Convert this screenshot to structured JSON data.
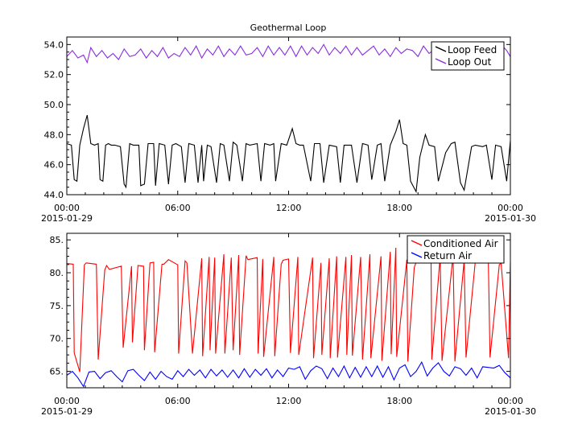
{
  "chart_data": [
    {
      "type": "line",
      "title": "Geothermal Loop",
      "xlabel": "",
      "ylabel": "",
      "xlim": [
        "2015-01-29 00:00",
        "2015-01-30 00:00"
      ],
      "ylim": [
        44.0,
        54.5
      ],
      "xticks": [
        {
          "x_hours": 0,
          "label": "00:00",
          "sublabel": "2015-01-29"
        },
        {
          "x_hours": 6,
          "label": "06:00",
          "sublabel": ""
        },
        {
          "x_hours": 12,
          "label": "12:00",
          "sublabel": ""
        },
        {
          "x_hours": 18,
          "label": "18:00",
          "sublabel": ""
        },
        {
          "x_hours": 24,
          "label": "00:00",
          "sublabel": "2015-01-30"
        }
      ],
      "yticks": [
        {
          "value": 44,
          "label": "44.0"
        },
        {
          "value": 46,
          "label": "46.0"
        },
        {
          "value": 48,
          "label": "48.0"
        },
        {
          "value": 50,
          "label": "50.0"
        },
        {
          "value": 52,
          "label": "52.0"
        },
        {
          "value": 54,
          "label": "54.0"
        }
      ],
      "legend": "top-right",
      "series": [
        {
          "name": "Loop Feed",
          "color": "#000000",
          "x_hours": [
            0.0,
            0.25,
            0.4,
            0.55,
            0.7,
            0.9,
            1.1,
            1.3,
            1.5,
            1.7,
            1.8,
            1.95,
            2.1,
            2.25,
            2.4,
            2.6,
            2.9,
            3.1,
            3.2,
            3.4,
            3.6,
            3.9,
            4.0,
            4.2,
            4.4,
            4.7,
            4.8,
            5.0,
            5.3,
            5.5,
            5.7,
            5.9,
            6.2,
            6.4,
            6.6,
            6.9,
            7.1,
            7.3,
            7.4,
            7.6,
            7.8,
            8.1,
            8.3,
            8.5,
            8.8,
            9.0,
            9.2,
            9.5,
            9.7,
            9.9,
            10.3,
            10.5,
            10.7,
            11.0,
            11.2,
            11.3,
            11.6,
            11.9,
            12.2,
            12.4,
            12.6,
            12.8,
            13.2,
            13.4,
            13.7,
            13.9,
            14.2,
            14.6,
            14.8,
            15.0,
            15.4,
            15.7,
            16.0,
            16.3,
            16.5,
            16.8,
            17.0,
            17.2,
            17.5,
            17.8,
            18.0,
            18.2,
            18.4,
            18.6,
            18.9,
            19.1,
            19.4,
            19.6,
            19.9,
            20.1,
            20.5,
            20.8,
            21.0,
            21.3,
            21.5,
            21.9,
            22.1,
            22.5,
            22.7,
            23.0,
            23.2,
            23.5,
            23.8,
            24.0
          ],
          "values": [
            47.4,
            47.3,
            45.0,
            44.9,
            47.3,
            48.4,
            49.3,
            47.4,
            47.3,
            47.4,
            45.0,
            44.9,
            47.3,
            47.4,
            47.3,
            47.3,
            47.2,
            44.7,
            44.5,
            47.4,
            47.3,
            47.3,
            44.6,
            44.7,
            47.4,
            47.4,
            44.6,
            47.4,
            47.3,
            44.7,
            47.3,
            47.4,
            47.2,
            44.8,
            47.4,
            47.3,
            44.8,
            47.3,
            44.9,
            47.3,
            47.2,
            44.8,
            47.4,
            47.3,
            44.9,
            47.5,
            47.3,
            44.9,
            47.4,
            47.3,
            47.4,
            44.9,
            47.4,
            47.3,
            47.4,
            44.9,
            47.4,
            47.3,
            48.4,
            47.4,
            47.3,
            47.3,
            44.9,
            47.4,
            47.4,
            44.8,
            47.3,
            47.2,
            44.8,
            47.3,
            47.3,
            44.8,
            47.4,
            47.3,
            45.0,
            47.3,
            47.4,
            44.9,
            47.3,
            48.2,
            49.0,
            47.4,
            47.3,
            44.9,
            44.2,
            46.5,
            48.0,
            47.3,
            47.2,
            44.9,
            46.8,
            47.4,
            47.5,
            44.8,
            44.3,
            47.2,
            47.3,
            47.2,
            47.3,
            45.0,
            47.3,
            47.2,
            44.9,
            47.6
          ]
        },
        {
          "name": "Loop Out",
          "color": "#8a2be2",
          "x_hours": [
            0.0,
            0.3,
            0.6,
            0.9,
            1.1,
            1.3,
            1.6,
            1.9,
            2.2,
            2.5,
            2.8,
            3.1,
            3.4,
            3.7,
            4.0,
            4.3,
            4.6,
            4.9,
            5.2,
            5.5,
            5.8,
            6.1,
            6.4,
            6.7,
            7.0,
            7.3,
            7.6,
            7.9,
            8.2,
            8.5,
            8.8,
            9.1,
            9.4,
            9.7,
            10.0,
            10.3,
            10.6,
            10.9,
            11.2,
            11.5,
            11.8,
            12.1,
            12.4,
            12.7,
            13.0,
            13.3,
            13.6,
            13.9,
            14.2,
            14.5,
            14.8,
            15.1,
            15.4,
            15.7,
            16.0,
            16.3,
            16.6,
            16.9,
            17.2,
            17.5,
            17.8,
            18.1,
            18.4,
            18.7,
            19.0,
            19.3,
            19.6,
            19.9,
            20.2,
            20.5,
            20.8,
            21.1,
            21.4,
            21.7,
            22.0,
            22.3,
            22.6,
            22.9,
            23.2,
            23.5,
            23.8,
            24.0
          ],
          "values": [
            53.2,
            53.6,
            53.1,
            53.3,
            52.8,
            53.8,
            53.2,
            53.6,
            53.1,
            53.4,
            53.0,
            53.7,
            53.2,
            53.3,
            53.7,
            53.1,
            53.6,
            53.2,
            53.8,
            53.1,
            53.4,
            53.2,
            53.8,
            53.3,
            53.9,
            53.1,
            53.7,
            53.3,
            53.9,
            53.2,
            53.7,
            53.3,
            53.9,
            53.3,
            53.4,
            53.8,
            53.2,
            53.9,
            53.3,
            53.8,
            53.3,
            53.9,
            53.2,
            53.9,
            53.3,
            53.8,
            53.4,
            54.0,
            53.3,
            53.8,
            53.4,
            53.9,
            53.3,
            53.8,
            53.3,
            53.6,
            53.9,
            53.3,
            53.7,
            53.2,
            53.8,
            53.4,
            53.7,
            53.6,
            53.2,
            53.9,
            53.4,
            53.7,
            53.3,
            54.0,
            53.3,
            53.8,
            53.4,
            54.1,
            53.5,
            53.9,
            53.3,
            53.9,
            53.4,
            54.0,
            53.6,
            53.2
          ]
        }
      ]
    },
    {
      "type": "line",
      "title": "",
      "xlabel": "",
      "ylabel": "",
      "xlim": [
        "2015-01-29 00:00",
        "2015-01-30 00:00"
      ],
      "ylim": [
        62.5,
        86.0
      ],
      "xticks": [
        {
          "x_hours": 0,
          "label": "00:00",
          "sublabel": "2015-01-29"
        },
        {
          "x_hours": 6,
          "label": "06:00",
          "sublabel": ""
        },
        {
          "x_hours": 12,
          "label": "12:00",
          "sublabel": ""
        },
        {
          "x_hours": 18,
          "label": "18:00",
          "sublabel": ""
        },
        {
          "x_hours": 24,
          "label": "00:00",
          "sublabel": "2015-01-30"
        }
      ],
      "yticks": [
        {
          "value": 65,
          "label": "65."
        },
        {
          "value": 70,
          "label": "70."
        },
        {
          "value": 75,
          "label": "75."
        },
        {
          "value": 80,
          "label": "80."
        },
        {
          "value": 85,
          "label": "85."
        }
      ],
      "legend": "top-right",
      "series": [
        {
          "name": "Conditioned Air",
          "color": "#ff0000",
          "x_hours": [
            0.0,
            0.35,
            0.4,
            0.7,
            0.95,
            1.05,
            1.6,
            1.7,
            2.05,
            2.15,
            2.3,
            2.95,
            3.05,
            3.5,
            3.55,
            3.85,
            4.15,
            4.2,
            4.5,
            4.7,
            4.75,
            5.15,
            5.25,
            5.5,
            6.0,
            6.05,
            6.4,
            6.5,
            6.8,
            7.3,
            7.35,
            7.7,
            7.75,
            8.0,
            8.05,
            8.5,
            8.55,
            8.9,
            9.0,
            9.3,
            9.35,
            9.7,
            9.8,
            10.3,
            10.35,
            10.6,
            10.65,
            11.2,
            11.25,
            11.6,
            11.7,
            12.0,
            12.1,
            12.5,
            12.55,
            13.3,
            13.35,
            13.75,
            13.8,
            14.2,
            14.25,
            14.6,
            14.65,
            15.1,
            15.15,
            15.4,
            15.45,
            15.9,
            16.0,
            16.4,
            16.45,
            17.0,
            17.05,
            17.5,
            17.55,
            17.8,
            17.85,
            18.4,
            18.45,
            18.8,
            18.9,
            19.7,
            19.75,
            20.2,
            20.3,
            20.9,
            21.0,
            21.5,
            21.6,
            22.1,
            22.2,
            22.8,
            22.9,
            23.4,
            23.5,
            23.9,
            24.0
          ],
          "values": [
            81.4,
            81.3,
            67.8,
            64.9,
            81.2,
            81.5,
            81.3,
            66.8,
            80.4,
            81.1,
            80.5,
            81.0,
            68.6,
            81.0,
            69.4,
            81.1,
            81.0,
            68.2,
            81.5,
            81.6,
            67.9,
            81.3,
            81.3,
            82.0,
            81.2,
            67.7,
            81.8,
            81.5,
            67.7,
            82.2,
            67.3,
            82.4,
            68.2,
            82.3,
            67.7,
            82.8,
            67.7,
            82.3,
            68.2,
            82.7,
            67.5,
            82.6,
            82.0,
            82.3,
            67.7,
            82.1,
            67.2,
            82.4,
            67.3,
            81.3,
            81.9,
            82.1,
            67.8,
            82.4,
            67.5,
            82.3,
            67.0,
            81.5,
            67.5,
            82.2,
            67.0,
            82.5,
            67.1,
            82.4,
            67.5,
            82.7,
            67.4,
            82.4,
            66.8,
            82.8,
            67.0,
            82.5,
            66.6,
            83.2,
            67.6,
            83.8,
            67.2,
            82.0,
            66.5,
            80.8,
            81.6,
            84.0,
            66.8,
            82.5,
            66.6,
            82.6,
            66.5,
            81.9,
            67.1,
            81.7,
            81.8,
            82.8,
            67.1,
            81.2,
            81.5,
            67.0,
            81.6
          ]
        },
        {
          "name": "Return Air",
          "color": "#0000ff",
          "x_hours": [
            0.0,
            0.3,
            0.6,
            0.9,
            1.2,
            1.5,
            1.8,
            2.1,
            2.4,
            2.7,
            3.0,
            3.3,
            3.6,
            3.9,
            4.2,
            4.5,
            4.8,
            5.1,
            5.4,
            5.7,
            6.0,
            6.3,
            6.6,
            6.9,
            7.2,
            7.5,
            7.8,
            8.1,
            8.4,
            8.7,
            9.0,
            9.3,
            9.6,
            9.9,
            10.2,
            10.5,
            10.8,
            11.1,
            11.4,
            11.7,
            12.0,
            12.3,
            12.6,
            12.9,
            13.2,
            13.5,
            13.8,
            14.1,
            14.4,
            14.7,
            15.0,
            15.3,
            15.6,
            15.9,
            16.2,
            16.5,
            16.8,
            17.1,
            17.4,
            17.7,
            18.0,
            18.3,
            18.6,
            18.9,
            19.2,
            19.5,
            19.8,
            20.1,
            20.4,
            20.7,
            21.0,
            21.3,
            21.6,
            21.9,
            22.2,
            22.5,
            22.8,
            23.1,
            23.4,
            23.7,
            24.0
          ],
          "values": [
            64.4,
            65.0,
            64.0,
            62.7,
            64.9,
            65.0,
            63.9,
            64.8,
            65.1,
            64.2,
            63.4,
            65.1,
            65.3,
            64.4,
            63.6,
            64.9,
            63.8,
            65.0,
            64.2,
            63.8,
            65.1,
            64.2,
            65.3,
            64.4,
            65.2,
            64.0,
            65.3,
            64.3,
            65.2,
            64.1,
            65.2,
            64.0,
            65.4,
            64.1,
            65.3,
            64.4,
            65.4,
            64.0,
            65.2,
            64.2,
            65.5,
            65.3,
            65.7,
            63.8,
            65.1,
            65.8,
            65.4,
            63.9,
            65.5,
            64.2,
            65.8,
            64.0,
            65.6,
            64.1,
            65.7,
            64.2,
            65.8,
            64.1,
            65.7,
            63.7,
            65.5,
            66.0,
            64.2,
            65.0,
            66.4,
            64.3,
            65.5,
            66.3,
            65.0,
            64.3,
            65.7,
            65.4,
            64.4,
            65.5,
            64.0,
            65.7,
            65.6,
            65.5,
            65.9,
            64.8,
            64.0
          ]
        }
      ]
    }
  ]
}
